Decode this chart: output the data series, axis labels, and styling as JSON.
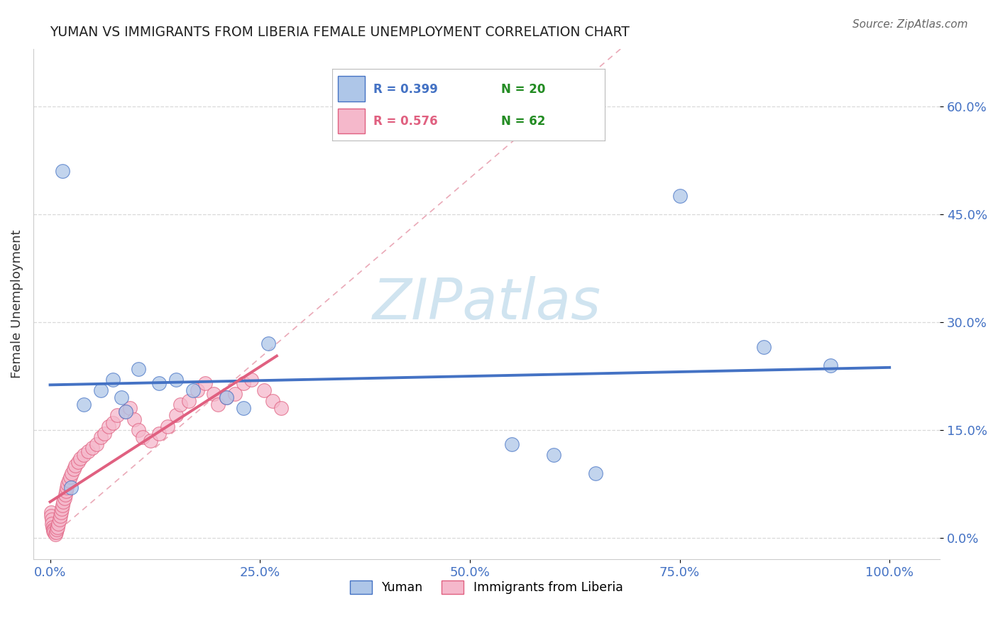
{
  "title": "YUMAN VS IMMIGRANTS FROM LIBERIA FEMALE UNEMPLOYMENT CORRELATION CHART",
  "source": "Source: ZipAtlas.com",
  "xlabel_vals": [
    0,
    25,
    50,
    75,
    100
  ],
  "ylabel_vals": [
    0,
    15,
    30,
    45,
    60
  ],
  "xlim": [
    -2,
    106
  ],
  "ylim": [
    -3,
    68
  ],
  "ylabel": "Female Unemployment",
  "yuman_x": [
    1.5,
    2.5,
    4.0,
    6.0,
    7.5,
    8.5,
    9.0,
    10.5,
    13.0,
    15.0,
    17.0,
    21.0,
    23.0,
    26.0,
    55.0,
    60.0,
    65.0,
    75.0,
    85.0,
    93.0
  ],
  "yuman_y": [
    51.0,
    7.0,
    18.5,
    20.5,
    22.0,
    19.5,
    17.5,
    23.5,
    21.5,
    22.0,
    20.5,
    19.5,
    18.0,
    27.0,
    13.0,
    11.5,
    9.0,
    47.5,
    26.5,
    24.0
  ],
  "liberia_x": [
    0.1,
    0.15,
    0.2,
    0.25,
    0.3,
    0.35,
    0.4,
    0.5,
    0.6,
    0.7,
    0.8,
    0.9,
    1.0,
    1.1,
    1.2,
    1.3,
    1.4,
    1.5,
    1.6,
    1.7,
    1.8,
    1.9,
    2.0,
    2.1,
    2.2,
    2.4,
    2.6,
    2.8,
    3.0,
    3.3,
    3.6,
    4.0,
    4.5,
    5.0,
    5.5,
    6.0,
    6.5,
    7.0,
    7.5,
    8.0,
    9.0,
    9.5,
    10.0,
    10.5,
    11.0,
    12.0,
    13.0,
    14.0,
    15.0,
    15.5,
    16.5,
    17.5,
    18.5,
    19.5,
    20.0,
    21.0,
    22.0,
    23.0,
    24.0,
    25.5,
    26.5,
    27.5
  ],
  "liberia_y": [
    3.5,
    3.0,
    2.5,
    2.0,
    1.5,
    1.2,
    1.0,
    0.8,
    0.5,
    0.8,
    1.2,
    1.5,
    2.0,
    2.5,
    3.0,
    3.5,
    4.0,
    4.5,
    5.0,
    5.5,
    6.0,
    6.5,
    7.0,
    7.5,
    8.0,
    8.5,
    9.0,
    9.5,
    10.0,
    10.5,
    11.0,
    11.5,
    12.0,
    12.5,
    13.0,
    14.0,
    14.5,
    15.5,
    16.0,
    17.0,
    17.5,
    18.0,
    16.5,
    15.0,
    14.0,
    13.5,
    14.5,
    15.5,
    17.0,
    18.5,
    19.0,
    20.5,
    21.5,
    20.0,
    18.5,
    19.5,
    20.0,
    21.5,
    22.0,
    20.5,
    19.0,
    18.0
  ],
  "yuman_fill_color": "#aec6e8",
  "yuman_edge_color": "#4472c4",
  "liberia_fill_color": "#f5b8cb",
  "liberia_edge_color": "#e06080",
  "yuman_line_color": "#4472c4",
  "liberia_line_color": "#e06080",
  "diag_line_color": "#e8a0b0",
  "watermark_color": "#d0e4f0",
  "grid_color": "#d0d0d0",
  "tick_color": "#4472c4",
  "background_color": "#ffffff",
  "title_color": "#222222",
  "source_color": "#666666",
  "ylabel_color": "#333333",
  "N_color": "#228B22",
  "watermark": "ZIPatlas"
}
